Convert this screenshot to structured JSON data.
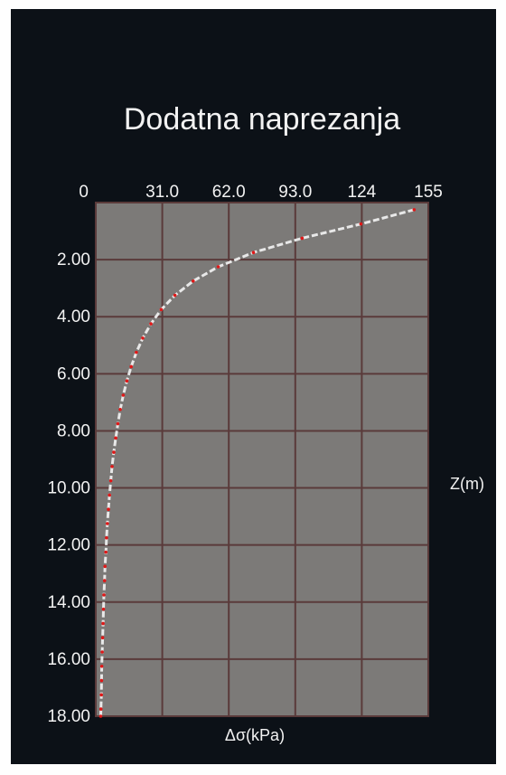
{
  "colors": {
    "frame_bg": "#0c1117",
    "plot_bg": "#7c7a78",
    "grid": "#5a3a3a",
    "text": "#f2f2f2",
    "curve": "#e8e8e8",
    "marker": "#e01818"
  },
  "chart_data": {
    "type": "line",
    "title": "Dodatna naprezanja",
    "xlabel": "Δσ(kPa)",
    "ylabel": "Z(m)",
    "x_axis_position": "top",
    "y_inverted": true,
    "xlim": [
      0,
      155
    ],
    "ylim": [
      0,
      18
    ],
    "grid": true,
    "x_ticks": [
      {
        "value": 0,
        "label": "0"
      },
      {
        "value": 31,
        "label": "31.0"
      },
      {
        "value": 62,
        "label": "62.0"
      },
      {
        "value": 93,
        "label": "93.0"
      },
      {
        "value": 124,
        "label": "124"
      },
      {
        "value": 155,
        "label": "155"
      }
    ],
    "y_ticks": [
      {
        "value": 2,
        "label": "2.00"
      },
      {
        "value": 4,
        "label": "4.00"
      },
      {
        "value": 6,
        "label": "6.00"
      },
      {
        "value": 8,
        "label": "8.00"
      },
      {
        "value": 10,
        "label": "10.00"
      },
      {
        "value": 12,
        "label": "12.00"
      },
      {
        "value": 14,
        "label": "14.00"
      },
      {
        "value": 16,
        "label": "16.00"
      },
      {
        "value": 18,
        "label": "18.00"
      }
    ],
    "series": [
      {
        "x": [
          148.4,
          123.6,
          96.2,
          73.5,
          57.1,
          45.4,
          36.9,
          30.5,
          25.7,
          21.9,
          18.9,
          16.5,
          14.5,
          12.8,
          11.4,
          10.3,
          9.3,
          8.4,
          7.6,
          7.0,
          6.4,
          5.9,
          5.4,
          5.0,
          4.7,
          4.3,
          4.1,
          3.8,
          3.6,
          3.4,
          3.2,
          3.0,
          2.8,
          2.7,
          2.6,
          2.4,
          2.3
        ],
        "y": [
          0.25,
          0.75,
          1.25,
          1.75,
          2.25,
          2.75,
          3.25,
          3.75,
          4.25,
          4.75,
          5.25,
          5.75,
          6.25,
          6.75,
          7.25,
          7.75,
          8.25,
          8.75,
          9.25,
          9.75,
          10.25,
          10.75,
          11.25,
          11.75,
          12.25,
          12.75,
          13.25,
          13.75,
          14.25,
          14.75,
          15.25,
          15.75,
          16.25,
          16.75,
          17.25,
          17.75,
          18.0
        ]
      }
    ]
  }
}
